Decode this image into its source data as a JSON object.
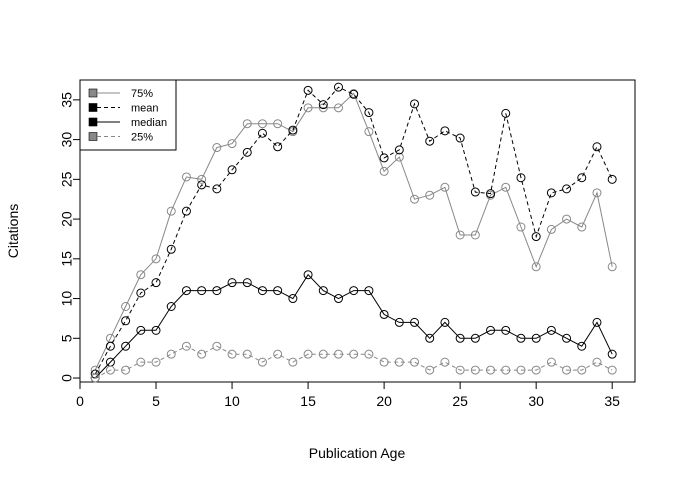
{
  "chart_data": {
    "type": "line",
    "title": "",
    "xlabel": "Publication Age",
    "ylabel": "Citations",
    "xlim": [
      0,
      36.5
    ],
    "ylim": [
      -0.5,
      37.5
    ],
    "xticks": [
      0,
      5,
      10,
      15,
      20,
      25,
      30,
      35
    ],
    "yticks": [
      0,
      5,
      10,
      15,
      20,
      25,
      30,
      35
    ],
    "grid": false,
    "legend_position": "top-left",
    "x": [
      1,
      2,
      3,
      4,
      5,
      6,
      7,
      8,
      9,
      10,
      11,
      12,
      13,
      14,
      15,
      16,
      17,
      18,
      19,
      20,
      21,
      22,
      23,
      24,
      25,
      26,
      27,
      28,
      29,
      30,
      31,
      32,
      33,
      34,
      35
    ],
    "series": [
      {
        "name": "75%",
        "color": "#888888",
        "line": "solid",
        "values": [
          1,
          5,
          9,
          13,
          15,
          21,
          25.3,
          25,
          29,
          29.5,
          32,
          32,
          32,
          31,
          34,
          34,
          34,
          35.8,
          31,
          26,
          27.8,
          22.5,
          23,
          24,
          18,
          18,
          23,
          24,
          19,
          14,
          18.7,
          20,
          19,
          23.3,
          14
        ]
      },
      {
        "name": "mean",
        "color": "#000000",
        "line": "dashed",
        "values": [
          0.5,
          4,
          7.2,
          10.7,
          12,
          16.2,
          21,
          24.3,
          23.8,
          26.2,
          28.4,
          30.8,
          29.1,
          31.2,
          36.2,
          34.4,
          36.6,
          35.7,
          33.4,
          27.7,
          28.7,
          34.5,
          29.8,
          31.1,
          30.2,
          23.4,
          23.2,
          33.3,
          25.2,
          17.8,
          23.3,
          23.8,
          25.2,
          29.1,
          25
        ]
      },
      {
        "name": "median",
        "color": "#000000",
        "line": "solid",
        "values": [
          0,
          2,
          4,
          6,
          6,
          9,
          11,
          11,
          11,
          12,
          12,
          11,
          11,
          10,
          13,
          11,
          10,
          11,
          11,
          8,
          7,
          7,
          5,
          7,
          5,
          5,
          6,
          6,
          5,
          5,
          6,
          5,
          4,
          7,
          3
        ]
      },
      {
        "name": "25%",
        "color": "#888888",
        "line": "dashed",
        "values": [
          0,
          1,
          1,
          2,
          2,
          3,
          4,
          3,
          4,
          3,
          3,
          2,
          3,
          2,
          3,
          3,
          3,
          3,
          3,
          2,
          2,
          2,
          1,
          2,
          1,
          1,
          1,
          1,
          1,
          1,
          2,
          1,
          1,
          2,
          1
        ]
      }
    ]
  }
}
